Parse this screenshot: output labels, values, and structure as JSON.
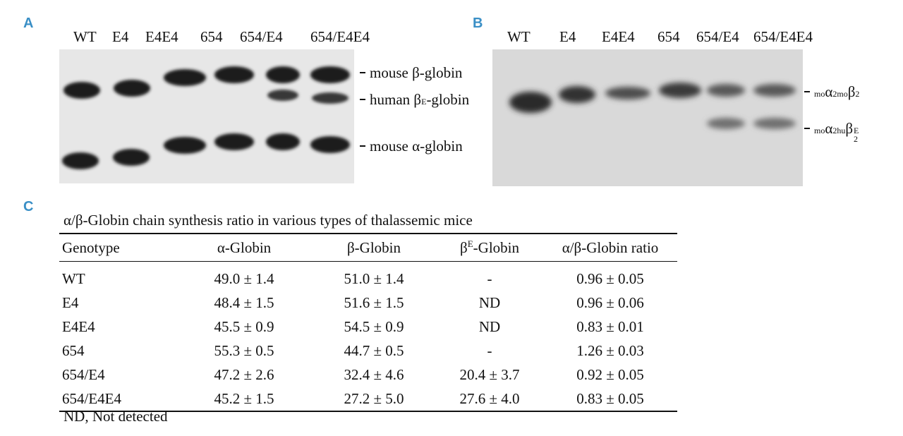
{
  "panels": {
    "a": "A",
    "b": "B",
    "c": "C"
  },
  "lanes": [
    "WT",
    "E4",
    "E4E4",
    "654",
    "654/E4",
    "654/E4E4"
  ],
  "panel_a": {
    "bands": {
      "mouse_beta": {
        "prefix": "mouse β-globin"
      },
      "human_betaE": {
        "prefix": "human β",
        "sup": "E",
        "suffix": "-globin"
      },
      "mouse_alpha": {
        "prefix": "mouse α-globin"
      }
    }
  },
  "panel_b": {
    "bands": {
      "top": {
        "sup1": "mo",
        "base1": "α",
        "sub1": "2",
        "sup2": "mo",
        "base2": "β",
        "sub2": "2"
      },
      "bottom": {
        "sup1": "mo",
        "base1": "α",
        "sub1": "2",
        "sup2": "hu",
        "base2": "β",
        "sup3": "E",
        "sub3": "2"
      }
    }
  },
  "table": {
    "caption": "α/β-Globin chain synthesis ratio in various types of  thalassemic mice",
    "headers": {
      "genotype": "Genotype",
      "alpha": "α-Globin",
      "beta": "β-Globin",
      "betaE_base": "β",
      "betaE_sup": "E",
      "betaE_suffix": "-Globin",
      "ratio": "α/β-Globin ratio"
    },
    "rows": [
      [
        "WT",
        "49.0 ± 1.4",
        "51.0 ± 1.4",
        "-",
        "0.96 ± 0.05"
      ],
      [
        "E4",
        "48.4 ± 1.5",
        "51.6 ± 1.5",
        "ND",
        "0.96 ± 0.06"
      ],
      [
        "E4E4",
        "45.5 ± 0.9",
        "54.5 ± 0.9",
        "ND",
        "0.83 ± 0.01"
      ],
      [
        "654",
        "55.3 ± 0.5",
        "44.7 ± 0.5",
        "-",
        "1.26 ± 0.03"
      ],
      [
        "654/E4",
        "47.2 ± 2.6",
        "32.4 ± 4.6",
        "20.4 ± 3.7",
        "0.92 ± 0.05"
      ],
      [
        "654/E4E4",
        "45.2 ± 1.5",
        "27.2 ± 5.0",
        "27.6 ± 4.0",
        "0.83 ± 0.05"
      ]
    ],
    "footnote": "ND, Not detected"
  }
}
